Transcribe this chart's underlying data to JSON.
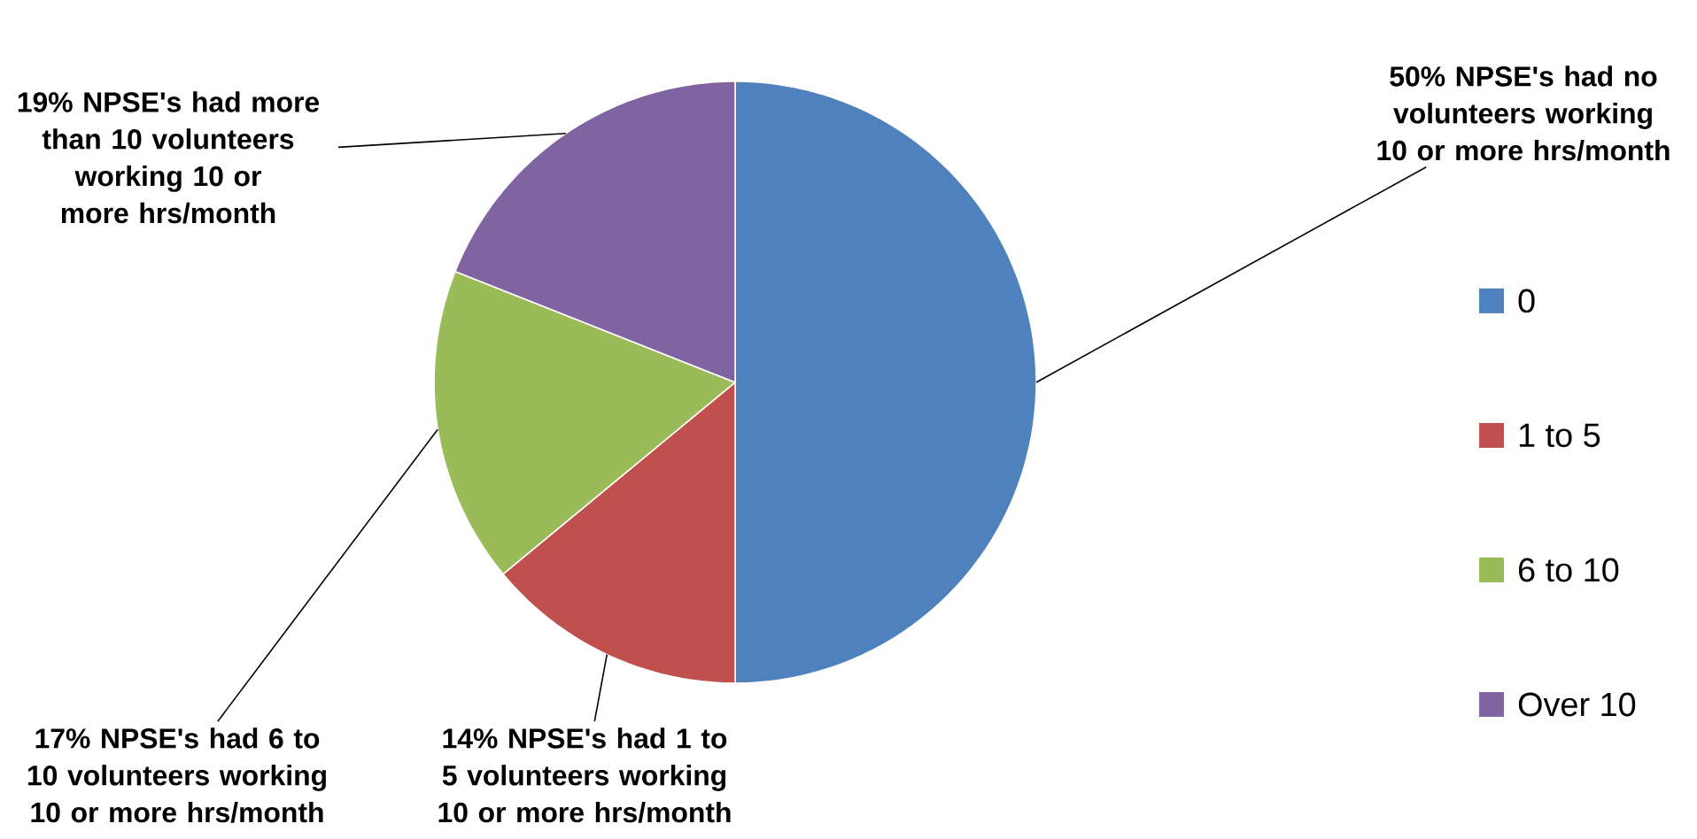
{
  "chart_data": {
    "type": "pie",
    "categories": [
      "0",
      "1 to 5",
      "6 to 10",
      "Over 10"
    ],
    "values": [
      50,
      14,
      17,
      19
    ],
    "colors": [
      "#4f81bd",
      "#c0504d",
      "#9bbb59",
      "#8064a2"
    ],
    "legend": "right",
    "annotations": [
      "50% NPSE's had no volunteers working 10 or more hrs/month",
      "14% NPSE's had 1 to 5 volunteers working 10 or more hrs/month",
      "17% NPSE's had 6 to 10 volunteers working 10 or more hrs/month",
      "19% NPSE's had more than 10 volunteers working 10 or more hrs/month"
    ]
  }
}
